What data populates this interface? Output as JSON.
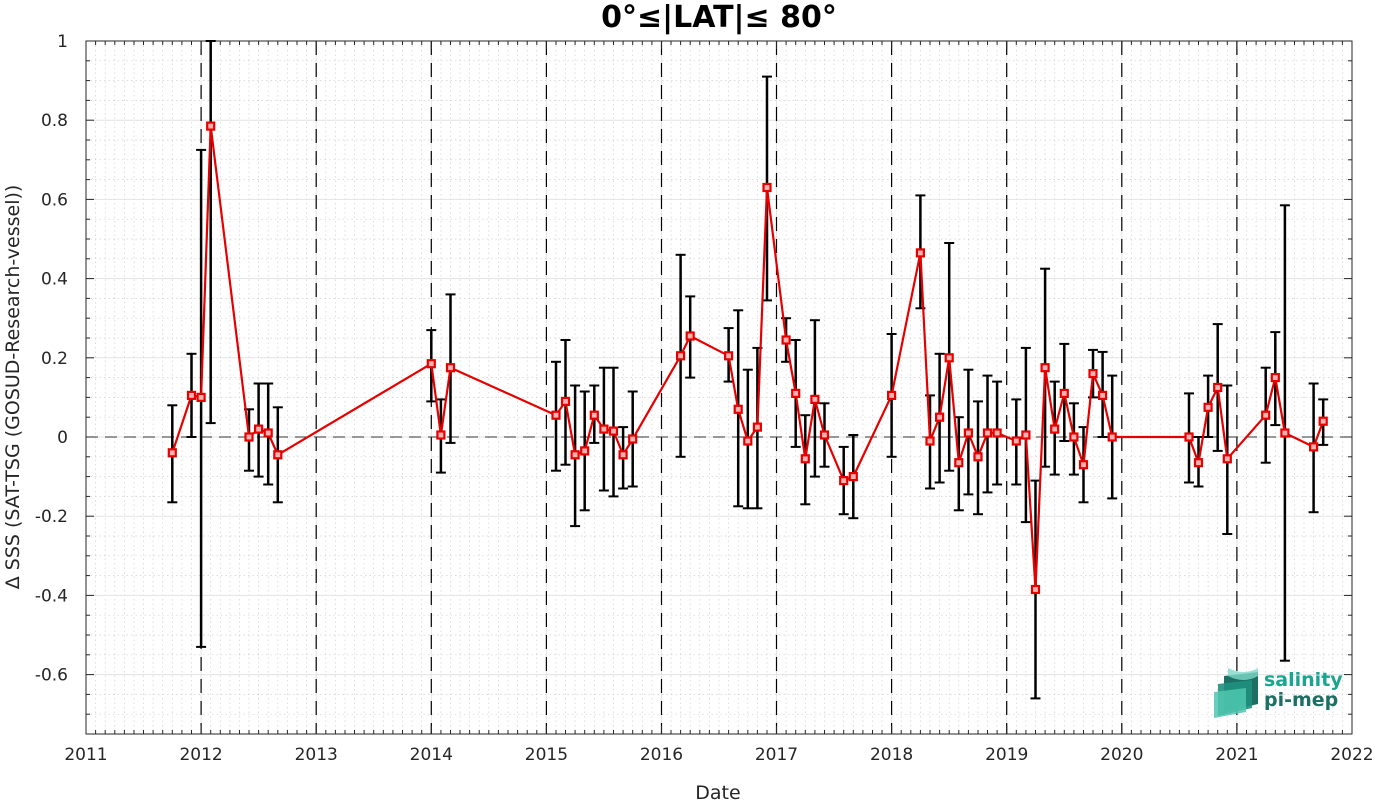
{
  "chart_data": {
    "type": "line",
    "title": "0°≤|LAT|≤ 80°",
    "xlabel": "Date",
    "ylabel": "Δ SSS (SAT-TSG (GOSUD-Research-vessel))",
    "xlim": [
      "2011-01-01",
      "2022-01-01"
    ],
    "ylim": [
      -0.75,
      1.0
    ],
    "x_ticks": [
      "2011",
      "2012",
      "2013",
      "2014",
      "2015",
      "2016",
      "2017",
      "2018",
      "2019",
      "2020",
      "2021",
      "2022"
    ],
    "y_ticks": [
      "1",
      "0.8",
      "0.6",
      "0.4",
      "0.2",
      "0",
      "-0.2",
      "-0.4",
      "-0.6"
    ],
    "grid": true,
    "reference_line_y": 0,
    "year_dividers": [
      "2012",
      "2013",
      "2014",
      "2015",
      "2016",
      "2017",
      "2018",
      "2019",
      "2020",
      "2021"
    ],
    "series": [
      {
        "color": "#e60000",
        "error_bar_color": "#000000",
        "marker": "square",
        "points": [
          {
            "date": "2011-10",
            "y": -0.04,
            "lo": -0.165,
            "hi": 0.08
          },
          {
            "date": "2011-12",
            "y": 0.105,
            "lo": 0.0,
            "hi": 0.21
          },
          {
            "date": "2012-01",
            "y": 0.1,
            "lo": -0.53,
            "hi": 0.725
          },
          {
            "date": "2012-02",
            "y": 0.785,
            "lo": 0.035,
            "hi": 1.0
          },
          {
            "date": "2012-06",
            "y": 0.0,
            "lo": -0.085,
            "hi": 0.07
          },
          {
            "date": "2012-07",
            "y": 0.02,
            "lo": -0.1,
            "hi": 0.135
          },
          {
            "date": "2012-08",
            "y": 0.01,
            "lo": -0.12,
            "hi": 0.135
          },
          {
            "date": "2012-09",
            "y": -0.045,
            "lo": -0.165,
            "hi": 0.075
          },
          {
            "date": "2014-01",
            "y": 0.185,
            "lo": 0.09,
            "hi": 0.27
          },
          {
            "date": "2014-02",
            "y": 0.005,
            "lo": -0.09,
            "hi": 0.095
          },
          {
            "date": "2014-03",
            "y": 0.175,
            "lo": -0.015,
            "hi": 0.36
          },
          {
            "date": "2015-02",
            "y": 0.055,
            "lo": -0.085,
            "hi": 0.19
          },
          {
            "date": "2015-03",
            "y": 0.09,
            "lo": -0.07,
            "hi": 0.245
          },
          {
            "date": "2015-04",
            "y": -0.045,
            "lo": -0.225,
            "hi": 0.13
          },
          {
            "date": "2015-05",
            "y": -0.035,
            "lo": -0.185,
            "hi": 0.115
          },
          {
            "date": "2015-06",
            "y": 0.055,
            "lo": -0.015,
            "hi": 0.13
          },
          {
            "date": "2015-07",
            "y": 0.02,
            "lo": -0.135,
            "hi": 0.175
          },
          {
            "date": "2015-08",
            "y": 0.015,
            "lo": -0.15,
            "hi": 0.175
          },
          {
            "date": "2015-09",
            "y": -0.045,
            "lo": -0.13,
            "hi": 0.025
          },
          {
            "date": "2015-10",
            "y": -0.005,
            "lo": -0.125,
            "hi": 0.115
          },
          {
            "date": "2016-03",
            "y": 0.205,
            "lo": -0.05,
            "hi": 0.46
          },
          {
            "date": "2016-04",
            "y": 0.255,
            "lo": 0.15,
            "hi": 0.355
          },
          {
            "date": "2016-08",
            "y": 0.205,
            "lo": 0.14,
            "hi": 0.275
          },
          {
            "date": "2016-09",
            "y": 0.07,
            "lo": -0.175,
            "hi": 0.32
          },
          {
            "date": "2016-10",
            "y": -0.01,
            "lo": -0.18,
            "hi": 0.17
          },
          {
            "date": "2016-11",
            "y": 0.025,
            "lo": -0.18,
            "hi": 0.225
          },
          {
            "date": "2016-12",
            "y": 0.63,
            "lo": 0.345,
            "hi": 0.91
          },
          {
            "date": "2017-02",
            "y": 0.245,
            "lo": 0.19,
            "hi": 0.3
          },
          {
            "date": "2017-03",
            "y": 0.11,
            "lo": -0.025,
            "hi": 0.245
          },
          {
            "date": "2017-04",
            "y": -0.055,
            "lo": -0.17,
            "hi": 0.055
          },
          {
            "date": "2017-05",
            "y": 0.095,
            "lo": -0.1,
            "hi": 0.295
          },
          {
            "date": "2017-06",
            "y": 0.005,
            "lo": -0.075,
            "hi": 0.085
          },
          {
            "date": "2017-08",
            "y": -0.11,
            "lo": -0.195,
            "hi": -0.025
          },
          {
            "date": "2017-09",
            "y": -0.1,
            "lo": -0.205,
            "hi": 0.005
          },
          {
            "date": "2018-01",
            "y": 0.105,
            "lo": -0.05,
            "hi": 0.26
          },
          {
            "date": "2018-04",
            "y": 0.465,
            "lo": 0.325,
            "hi": 0.61
          },
          {
            "date": "2018-05",
            "y": -0.01,
            "lo": -0.13,
            "hi": 0.105
          },
          {
            "date": "2018-06",
            "y": 0.05,
            "lo": -0.115,
            "hi": 0.21
          },
          {
            "date": "2018-07",
            "y": 0.2,
            "lo": -0.085,
            "hi": 0.49
          },
          {
            "date": "2018-08",
            "y": -0.065,
            "lo": -0.185,
            "hi": 0.05
          },
          {
            "date": "2018-09",
            "y": 0.01,
            "lo": -0.145,
            "hi": 0.17
          },
          {
            "date": "2018-10",
            "y": -0.05,
            "lo": -0.195,
            "hi": 0.09
          },
          {
            "date": "2018-11",
            "y": 0.01,
            "lo": -0.14,
            "hi": 0.155
          },
          {
            "date": "2018-12",
            "y": 0.01,
            "lo": -0.12,
            "hi": 0.14
          },
          {
            "date": "2019-02",
            "y": -0.01,
            "lo": -0.12,
            "hi": 0.095
          },
          {
            "date": "2019-03",
            "y": 0.005,
            "lo": -0.215,
            "hi": 0.225
          },
          {
            "date": "2019-04",
            "y": -0.385,
            "lo": -0.66,
            "hi": -0.11
          },
          {
            "date": "2019-05",
            "y": 0.175,
            "lo": -0.075,
            "hi": 0.425
          },
          {
            "date": "2019-06",
            "y": 0.02,
            "lo": -0.095,
            "hi": 0.14
          },
          {
            "date": "2019-07",
            "y": 0.11,
            "lo": -0.01,
            "hi": 0.235
          },
          {
            "date": "2019-08",
            "y": 0.0,
            "lo": -0.095,
            "hi": 0.085
          },
          {
            "date": "2019-09",
            "y": -0.07,
            "lo": -0.165,
            "hi": 0.025
          },
          {
            "date": "2019-10",
            "y": 0.16,
            "lo": 0.1,
            "hi": 0.22
          },
          {
            "date": "2019-11",
            "y": 0.105,
            "lo": 0.0,
            "hi": 0.215
          },
          {
            "date": "2019-12",
            "y": 0.0,
            "lo": -0.155,
            "hi": 0.155
          },
          {
            "date": "2020-08",
            "y": 0.0,
            "lo": -0.115,
            "hi": 0.11
          },
          {
            "date": "2020-09",
            "y": -0.065,
            "lo": -0.125,
            "hi": 0.0
          },
          {
            "date": "2020-10",
            "y": 0.075,
            "lo": 0.0,
            "hi": 0.155
          },
          {
            "date": "2020-11",
            "y": 0.125,
            "lo": -0.035,
            "hi": 0.285
          },
          {
            "date": "2020-12",
            "y": -0.055,
            "lo": -0.245,
            "hi": 0.13
          },
          {
            "date": "2021-04",
            "y": 0.055,
            "lo": -0.065,
            "hi": 0.175
          },
          {
            "date": "2021-05",
            "y": 0.15,
            "lo": 0.03,
            "hi": 0.265
          },
          {
            "date": "2021-06",
            "y": 0.01,
            "lo": -0.565,
            "hi": 0.585
          },
          {
            "date": "2021-09",
            "y": -0.025,
            "lo": -0.19,
            "hi": 0.135
          },
          {
            "date": "2021-10",
            "y": 0.04,
            "lo": -0.02,
            "hi": 0.095
          }
        ]
      }
    ]
  },
  "logo": {
    "line1": "salinity",
    "line2": "pi-mep",
    "color_primary": "#1aa58f",
    "color_dark": "#1d6f63"
  }
}
